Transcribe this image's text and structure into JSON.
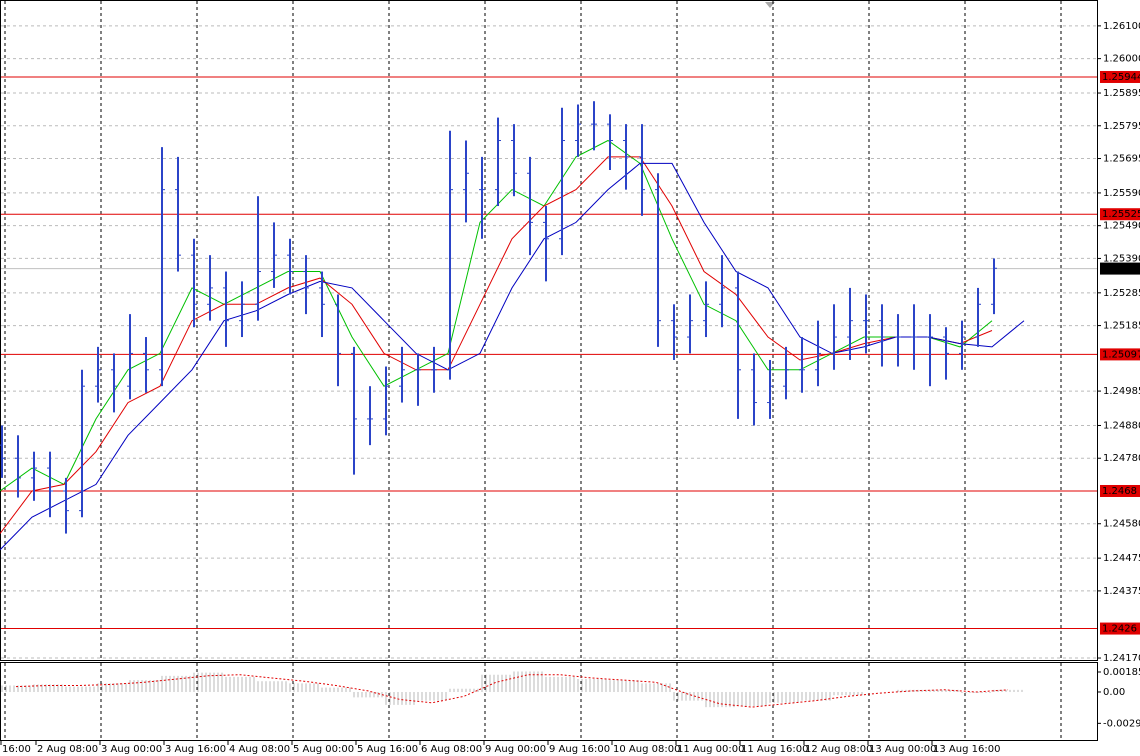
{
  "chart_data": {
    "type": "ohlc",
    "color": "#2b44c8",
    "grid": true,
    "ylim": [
      1.24164,
      1.26179
    ],
    "yticks": [
      {
        "value": 1.261,
        "label": "1.26100"
      },
      {
        "value": 1.26,
        "label": "1.26000"
      },
      1.25895,
      1.25795,
      1.25695,
      {
        "value": 1.2559,
        "label": "1.25590"
      },
      {
        "value": 1.2549,
        "label": "1.25490"
      },
      {
        "value": 1.2539,
        "label": "1.25390"
      },
      1.25285,
      1.25185,
      1.24985,
      {
        "value": 1.2488,
        "label": "1.24880"
      },
      {
        "value": 1.2478,
        "label": "1.24780"
      },
      {
        "value": 1.2458,
        "label": "1.24580"
      },
      1.24475,
      1.24375,
      {
        "value": 1.2417,
        "label": "1.24170"
      }
    ],
    "time_labels": [
      "16:00",
      "2 Aug 08:00",
      "3 Aug 00:00",
      "3 Aug 16:00",
      "4 Aug 08:00",
      "5 Aug 00:00",
      "5 Aug 16:00",
      "6 Aug 08:00",
      "9 Aug 00:00",
      "9 Aug 16:00",
      "10 Aug 08:00",
      "11 Aug 00:00",
      "11 Aug 16:00",
      "12 Aug 08:00",
      "13 Aug 00:00",
      "13 Aug 16:00"
    ],
    "open": [
      1.2482,
      1.2478,
      1.2472,
      1.2475,
      1.2468,
      1.2462,
      1.25,
      1.2505,
      1.25,
      1.251,
      1.2505,
      1.256,
      1.254,
      1.2525,
      1.253,
      1.252,
      1.2525,
      1.2535,
      1.254,
      1.2535,
      1.253,
      1.2525,
      1.251,
      1.249,
      1.249,
      1.25,
      1.2505,
      1.2505,
      1.2505,
      1.256,
      1.256,
      1.256,
      1.2575,
      1.2565,
      1.255,
      1.2545,
      1.2575,
      1.258,
      1.258,
      1.2575,
      1.257,
      1.256,
      1.252,
      1.2515,
      1.252,
      1.2525,
      1.253,
      1.2505,
      1.2495,
      1.25,
      1.2505,
      1.2505,
      1.251,
      1.2515,
      1.252,
      1.252,
      1.2515,
      1.2515,
      1.2515,
      1.2515,
      1.251,
      1.2515,
      1.2525
    ],
    "high": [
      1.2488,
      1.2485,
      1.248,
      1.248,
      1.2472,
      1.2505,
      1.2512,
      1.251,
      1.2522,
      1.2515,
      1.2573,
      1.257,
      1.2545,
      1.254,
      1.2535,
      1.2532,
      1.2558,
      1.255,
      1.2545,
      1.254,
      1.2535,
      1.2528,
      1.2512,
      1.25,
      1.2506,
      1.2512,
      1.251,
      1.2512,
      1.2578,
      1.2575,
      1.257,
      1.2582,
      1.258,
      1.257,
      1.2555,
      1.2585,
      1.2586,
      1.2587,
      1.2583,
      1.258,
      1.258,
      1.2565,
      1.2525,
      1.2528,
      1.2532,
      1.254,
      1.2535,
      1.251,
      1.2508,
      1.2512,
      1.2515,
      1.252,
      1.2525,
      1.253,
      1.2528,
      1.2525,
      1.2522,
      1.2525,
      1.2522,
      1.2518,
      1.252,
      1.253,
      1.2539
    ],
    "low": [
      1.2472,
      1.2466,
      1.2465,
      1.246,
      1.2455,
      1.246,
      1.2495,
      1.2492,
      1.2496,
      1.2498,
      1.25,
      1.2535,
      1.2518,
      1.252,
      1.2512,
      1.2515,
      1.252,
      1.253,
      1.2528,
      1.2522,
      1.2515,
      1.25,
      1.2473,
      1.2482,
      1.2485,
      1.2495,
      1.2494,
      1.2498,
      1.2502,
      1.255,
      1.2545,
      1.2555,
      1.2558,
      1.254,
      1.2532,
      1.254,
      1.257,
      1.2572,
      1.2566,
      1.256,
      1.2552,
      1.2512,
      1.2508,
      1.251,
      1.2515,
      1.2518,
      1.249,
      1.2488,
      1.249,
      1.2496,
      1.2498,
      1.25,
      1.2505,
      1.2508,
      1.251,
      1.2506,
      1.2506,
      1.2505,
      1.25,
      1.2502,
      1.2505,
      1.2512,
      1.2522
    ],
    "close": [
      1.2478,
      1.2472,
      1.2475,
      1.2468,
      1.2462,
      1.25,
      1.2505,
      1.25,
      1.251,
      1.2505,
      1.256,
      1.254,
      1.2525,
      1.253,
      1.252,
      1.2525,
      1.2535,
      1.254,
      1.2535,
      1.253,
      1.2525,
      1.251,
      1.249,
      1.249,
      1.25,
      1.2505,
      1.2505,
      1.2505,
      1.256,
      1.2565,
      1.256,
      1.2575,
      1.2565,
      1.255,
      1.2545,
      1.2575,
      1.258,
      1.258,
      1.2575,
      1.257,
      1.256,
      1.252,
      1.2515,
      1.252,
      1.2525,
      1.253,
      1.2505,
      1.2495,
      1.25,
      1.2505,
      1.2505,
      1.251,
      1.2515,
      1.252,
      1.252,
      1.2515,
      1.2515,
      1.2515,
      1.2515,
      1.251,
      1.2515,
      1.2525,
      1.2536
    ],
    "moving_averages": [
      {
        "color": "#00c000",
        "values": [
          1.2468,
          1.2475,
          1.247,
          1.249,
          1.2505,
          1.251,
          1.253,
          1.2525,
          1.253,
          1.2535,
          1.2535,
          1.2515,
          1.25,
          1.2505,
          1.251,
          1.255,
          1.256,
          1.2555,
          1.257,
          1.2575,
          1.2568,
          1.2545,
          1.2525,
          1.252,
          1.2505,
          1.2505,
          1.251,
          1.2515,
          1.2515,
          1.2515,
          1.2512,
          1.252,
          null
        ]
      },
      {
        "color": "#e00000",
        "values": [
          1.2455,
          1.2468,
          1.247,
          1.248,
          1.2495,
          1.25,
          1.252,
          1.2525,
          1.2525,
          1.253,
          1.2533,
          1.2525,
          1.251,
          1.2505,
          1.2505,
          1.2525,
          1.2545,
          1.2555,
          1.256,
          1.257,
          1.257,
          1.2555,
          1.2535,
          1.2528,
          1.2515,
          1.2508,
          1.251,
          1.2513,
          1.2515,
          1.2515,
          1.2513,
          1.2517,
          null
        ]
      },
      {
        "color": "#0000c0",
        "values": [
          1.245,
          1.246,
          1.2465,
          1.247,
          1.2485,
          1.2495,
          1.2505,
          1.252,
          1.2523,
          1.2528,
          1.2532,
          1.253,
          1.252,
          1.251,
          1.2505,
          1.251,
          1.253,
          1.2545,
          1.255,
          1.256,
          1.2568,
          1.2568,
          1.255,
          1.2535,
          1.253,
          1.2515,
          1.251,
          1.2512,
          1.2515,
          1.2515,
          1.2513,
          1.2512,
          1.252
        ]
      }
    ],
    "levels": {
      "color": "#e00000",
      "values": [
        1.25944,
        1.25525,
        1.25097,
        1.2468,
        1.2426
      ]
    },
    "current_price": 1.25359,
    "oscillator": {
      "ylim": [
        -0.00455,
        0.00269
      ],
      "yticks": [
        0.001856,
        {
          "value": 0,
          "label": "0.00"
        },
        -0.00291
      ],
      "histogram": [
        0.0006,
        0.0007,
        0.0005,
        0.0008,
        0.0011,
        0.0015,
        0.0018,
        0.0014,
        0.001,
        0.0008,
        0.0004,
        -0.0005,
        -0.0012,
        -0.0008,
        0.0003,
        0.0016,
        0.0019,
        0.0014,
        0.0012,
        0.0011,
        0.0008,
        -0.0008,
        -0.0014,
        -0.0013,
        -0.001,
        -0.0008,
        -0.0003,
        0,
        0.0002,
        0.0002,
        -0.0001,
        0.0002
      ],
      "signal": [
        0.0005,
        0.0006,
        0.0006,
        0.0007,
        0.0009,
        0.0012,
        0.0015,
        0.0016,
        0.0013,
        0.001,
        0.0006,
        0.0001,
        -0.0007,
        -0.001,
        -0.0004,
        0.0009,
        0.0016,
        0.0016,
        0.0013,
        0.0011,
        0.0009,
        -0.0002,
        -0.0011,
        -0.0014,
        -0.0011,
        -0.0008,
        -0.0004,
        -0.0001,
        0.0001,
        0.0002,
        0,
        0.0002
      ]
    }
  }
}
